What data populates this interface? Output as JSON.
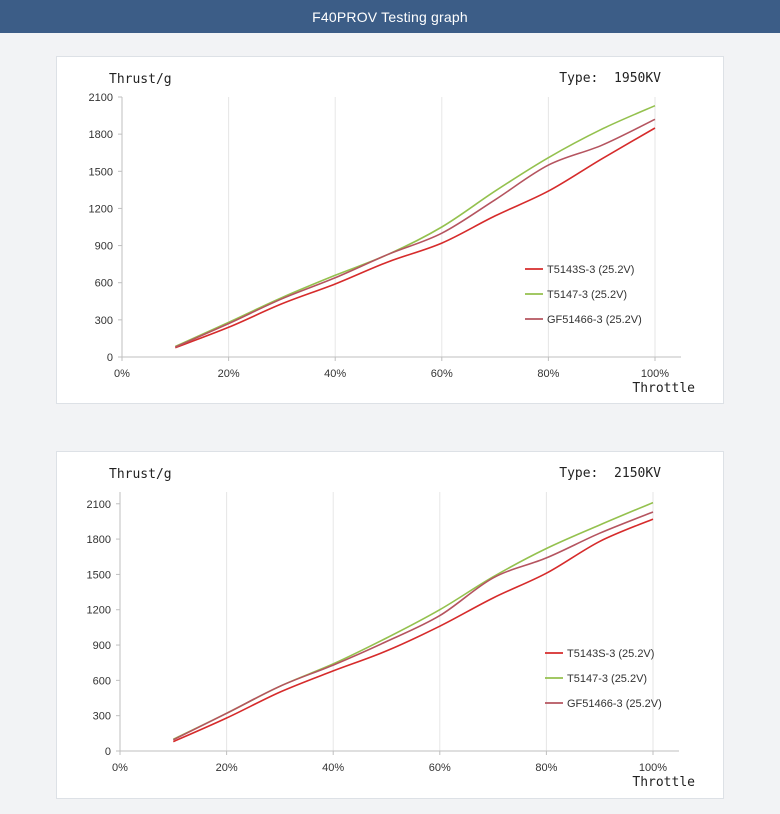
{
  "page": {
    "title": "F40PROV Testing graph"
  },
  "charts_meta": {
    "line_colors": [
      "#d62b2b",
      "#94c14e",
      "#b5545f"
    ]
  },
  "chart_data": [
    {
      "type": "line",
      "title": "",
      "ylabel": "Thrust/g",
      "xlabel": "Throttle",
      "type_label": "Type:  1950KV",
      "x": [
        10,
        20,
        30,
        40,
        50,
        60,
        70,
        80,
        90,
        100
      ],
      "x_ticks": [
        "0%",
        "20%",
        "40%",
        "60%",
        "80%",
        "100%"
      ],
      "x_tick_values": [
        0,
        20,
        40,
        60,
        80,
        100
      ],
      "y_ticks": [
        "0",
        "300",
        "600",
        "900",
        "1200",
        "1500",
        "1800",
        "2100"
      ],
      "y_tick_values": [
        0,
        300,
        600,
        900,
        1200,
        1500,
        1800,
        2100
      ],
      "xlim": [
        0,
        105
      ],
      "ylim": [
        0,
        2100
      ],
      "grid": "vertical",
      "legend_placement": "right",
      "series": [
        {
          "name": "T5143S-3 (25.2V)",
          "color": "#d62b2b",
          "values": [
            75,
            240,
            430,
            590,
            770,
            920,
            1140,
            1340,
            1600,
            1850
          ]
        },
        {
          "name": "T5147-3 (25.2V)",
          "color": "#94c14e",
          "values": [
            85,
            280,
            480,
            660,
            830,
            1050,
            1340,
            1610,
            1840,
            2030
          ]
        },
        {
          "name": "GF51466-3 (25.2V)",
          "color": "#b5545f",
          "values": [
            80,
            270,
            470,
            640,
            830,
            1000,
            1270,
            1550,
            1710,
            1920
          ]
        }
      ]
    },
    {
      "type": "line",
      "title": "",
      "ylabel": "Thrust/g",
      "xlabel": "Throttle",
      "type_label": "Type:  2150KV",
      "x": [
        10,
        20,
        30,
        40,
        50,
        60,
        70,
        80,
        90,
        100
      ],
      "x_ticks": [
        "0%",
        "20%",
        "40%",
        "60%",
        "80%",
        "100%"
      ],
      "x_tick_values": [
        0,
        20,
        40,
        60,
        80,
        100
      ],
      "y_ticks": [
        "0",
        "300",
        "600",
        "900",
        "1200",
        "1500",
        "1800",
        "2100"
      ],
      "y_tick_values": [
        0,
        300,
        600,
        900,
        1200,
        1500,
        1800,
        2100
      ],
      "xlim": [
        0,
        105
      ],
      "ylim": [
        0,
        2200
      ],
      "grid": "vertical",
      "legend_placement": "right",
      "series": [
        {
          "name": "T5143S-3 (25.2V)",
          "color": "#d62b2b",
          "values": [
            80,
            280,
            500,
            680,
            850,
            1060,
            1300,
            1510,
            1780,
            1970
          ]
        },
        {
          "name": "T5147-3 (25.2V)",
          "color": "#94c14e",
          "values": [
            100,
            320,
            550,
            740,
            960,
            1200,
            1480,
            1720,
            1920,
            2110
          ]
        },
        {
          "name": "GF51466-3 (25.2V)",
          "color": "#b5545f",
          "values": [
            95,
            320,
            550,
            730,
            930,
            1150,
            1470,
            1640,
            1850,
            2030
          ]
        }
      ]
    }
  ]
}
